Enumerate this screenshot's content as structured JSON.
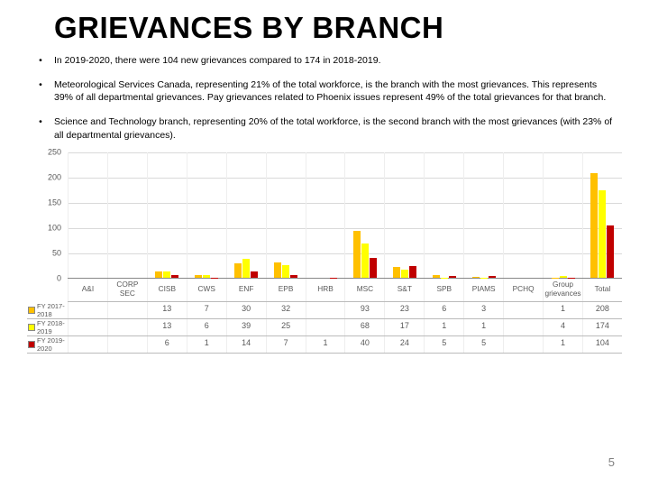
{
  "title": "GRIEVANCES BY BRANCH",
  "bullets": [
    "In 2019-2020, there were 104 new grievances compared to 174 in 2018-2019.",
    "Meteorological Services Canada, representing 21% of the total workforce, is the branch with the most grievances. This represents 39% of all departmental grievances. Pay grievances related to Phoenix issues represent 49% of the total grievances for that branch.",
    "Science and Technology branch, representing 20% of the total workforce, is the second branch with the most grievances (with 23% of all departmental grievances)."
  ],
  "page_number": "5",
  "chart": {
    "type": "bar",
    "ymax": 250,
    "yticks": [
      0,
      50,
      100,
      150,
      200,
      250
    ],
    "categories": [
      "A&I",
      "CORP SEC",
      "CISB",
      "CWS",
      "ENF",
      "EPB",
      "HRB",
      "MSC",
      "S&T",
      "SPB",
      "PIAMS",
      "PCHQ",
      "Group grievances",
      "Total"
    ],
    "series": [
      {
        "name": "FY 2017-2018",
        "color": "#ffc000",
        "values": [
          null,
          null,
          13,
          7,
          30,
          32,
          null,
          93,
          23,
          6,
          3,
          null,
          1,
          208
        ]
      },
      {
        "name": "FY 2018-2019",
        "color": "#ffff00",
        "values": [
          null,
          null,
          13,
          6,
          39,
          25,
          null,
          68,
          17,
          1,
          1,
          null,
          4,
          174
        ]
      },
      {
        "name": "FY 2019-2020",
        "color": "#c00000",
        "values": [
          null,
          null,
          6,
          1,
          14,
          7,
          1,
          40,
          24,
          5,
          5,
          null,
          1,
          104
        ]
      }
    ],
    "background_color": "#ffffff",
    "grid_color": "#d9d9d9",
    "axis_text_color": "#595959",
    "axis_fontsize": 9
  }
}
